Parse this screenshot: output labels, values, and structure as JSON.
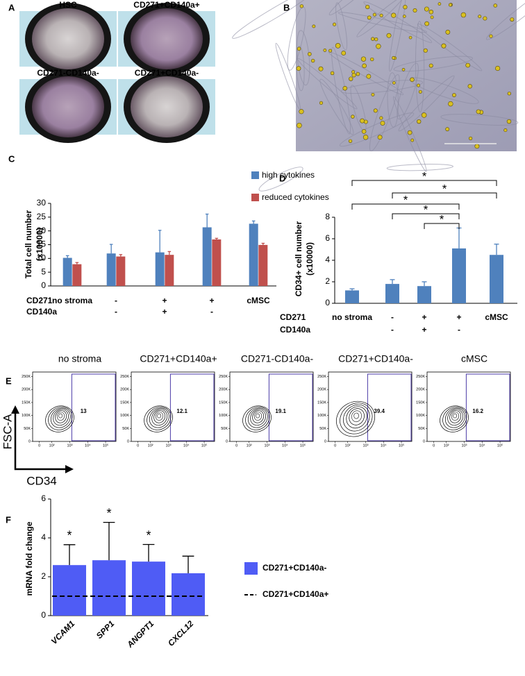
{
  "panel_labels": [
    "A",
    "B",
    "C",
    "D",
    "E",
    "F"
  ],
  "panel_a": {
    "labels": [
      "HSC",
      "CD271+CD140a+",
      "CD271-CD140a-",
      "CD271+CD140a-"
    ]
  },
  "chart_data": [
    {
      "type": "bar",
      "ylabel": [
        "Total cell number",
        "(x10000)"
      ],
      "category_rows": [
        {
          "name": "CD271",
          "labels": [
            "no stroma",
            "-",
            "+",
            "+",
            "cMSC"
          ]
        },
        {
          "name": "CD140a",
          "labels": [
            null,
            "-",
            "+",
            "-",
            null
          ]
        }
      ],
      "series": [
        {
          "name": "high cytokines",
          "color": "#4f81bd",
          "values": [
            10.2,
            11.8,
            12.2,
            21.3,
            22.6
          ],
          "errors": [
            0.8,
            3.3,
            8.0,
            4.8,
            1.0
          ]
        },
        {
          "name": "reduced cytokines",
          "color": "#c0504d",
          "values": [
            7.9,
            10.7,
            11.3,
            16.9,
            14.9
          ],
          "errors": [
            0.6,
            0.7,
            1.2,
            0.4,
            0.6
          ]
        }
      ],
      "ylim": [
        0,
        30
      ],
      "yticks": [
        0,
        5,
        10,
        15,
        20,
        25,
        30
      ]
    },
    {
      "type": "bar",
      "ylabel": [
        "CD34+ cell number",
        "(x10000)"
      ],
      "category_rows": [
        {
          "name": "CD271",
          "labels": [
            "no stroma",
            "-",
            "+",
            "+",
            "cMSC"
          ]
        },
        {
          "name": "CD140a",
          "labels": [
            null,
            "-",
            "+",
            "-",
            null
          ]
        }
      ],
      "color": "#4f81bd",
      "values": [
        1.2,
        1.8,
        1.6,
        5.1,
        4.5
      ],
      "errors": [
        0.15,
        0.4,
        0.4,
        1.9,
        1.0
      ],
      "comparisons": [
        {
          "from": 0,
          "to": 4,
          "label": "*"
        },
        {
          "from": 1,
          "to": 4,
          "label": "*"
        },
        {
          "from": 0,
          "to": 3,
          "label": "*"
        },
        {
          "from": 1,
          "to": 3,
          "label": "*"
        },
        {
          "from": 2,
          "to": 3,
          "label": "*"
        }
      ],
      "ylim": [
        0,
        8
      ],
      "yticks": [
        0,
        2,
        4,
        6,
        8
      ]
    },
    {
      "type": "bar",
      "ylabel": [
        "mRNA fold change"
      ],
      "categories": [
        "VCAM1",
        "SPP1",
        "ANGPT1",
        "CXCL12"
      ],
      "series": [
        {
          "name": "CD271+CD140a-",
          "color": "#4f5cf5",
          "values": [
            2.6,
            2.85,
            2.78,
            2.18
          ],
          "errors": [
            1.05,
            1.95,
            0.88,
            0.88
          ]
        }
      ],
      "significance": [
        "*",
        "*",
        "*",
        null
      ],
      "reference_line": {
        "name": "CD271+CD140a+",
        "value": 1
      },
      "ylim": [
        0,
        6
      ],
      "yticks": [
        0,
        2,
        4,
        6
      ]
    }
  ],
  "panel_e": {
    "xlabel": "CD34",
    "ylabel": "FSC-A",
    "plots": [
      {
        "title": "no stroma",
        "gate_value": 13
      },
      {
        "title": "CD271+CD140a+",
        "gate_value": 12.1
      },
      {
        "title": "CD271-CD140a-",
        "gate_value": 19.1
      },
      {
        "title": "CD271+CD140a-",
        "gate_value": 39.4
      },
      {
        "title": "cMSC",
        "gate_value": 16.2
      }
    ],
    "ylim": [
      0,
      262144
    ],
    "yticks": [
      0,
      {
        "value": 50000,
        "label": "50K"
      },
      {
        "value": 100000,
        "label": "100K"
      },
      {
        "value": 150000,
        "label": "150K"
      },
      {
        "value": 200000,
        "label": "200K"
      },
      {
        "value": 250000,
        "label": "250K"
      }
    ],
    "xticks": [
      0,
      {
        "value": 100,
        "label": "10²"
      },
      {
        "value": 1000,
        "label": "10³"
      },
      {
        "value": 10000,
        "label": "10⁴"
      },
      {
        "value": 100000,
        "label": "10⁵"
      }
    ]
  }
}
